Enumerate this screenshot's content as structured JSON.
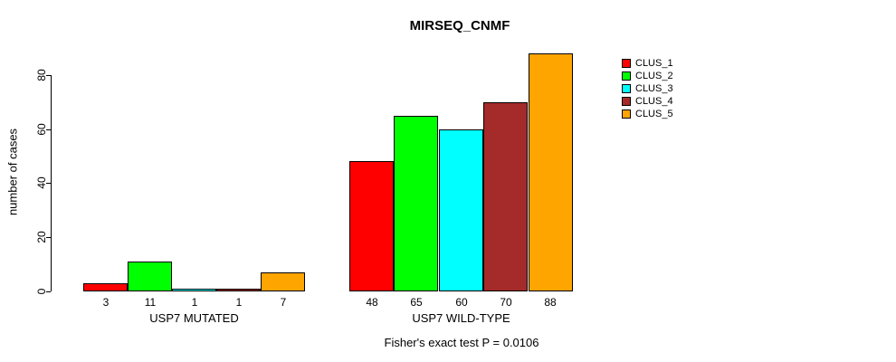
{
  "chart_data": {
    "type": "bar",
    "title": "MIRSEQ_CNMF",
    "ylabel": "number of cases",
    "xlabel": "",
    "yticks": [
      0,
      20,
      40,
      60,
      80
    ],
    "ylim": [
      0,
      88
    ],
    "grid": false,
    "legend_position": "right-top",
    "categories": [
      "USP7 MUTATED",
      "USP7 WILD-TYPE"
    ],
    "series": [
      {
        "name": "CLUS_1",
        "color": "#FF0000",
        "values": [
          3,
          48
        ]
      },
      {
        "name": "CLUS_2",
        "color": "#00FF00",
        "values": [
          11,
          65
        ]
      },
      {
        "name": "CLUS_3",
        "color": "#00FFFF",
        "values": [
          1,
          60
        ]
      },
      {
        "name": "CLUS_4",
        "color": "#A52A2A",
        "values": [
          1,
          70
        ]
      },
      {
        "name": "CLUS_5",
        "color": "#FFA500",
        "values": [
          7,
          88
        ]
      }
    ],
    "bar_value_labels": [
      [
        3,
        11,
        1,
        1,
        7
      ],
      [
        48,
        65,
        60,
        70,
        88
      ]
    ],
    "annotation": "Fisher's exact test P = 0.0106",
    "axis_color": "#000000"
  }
}
